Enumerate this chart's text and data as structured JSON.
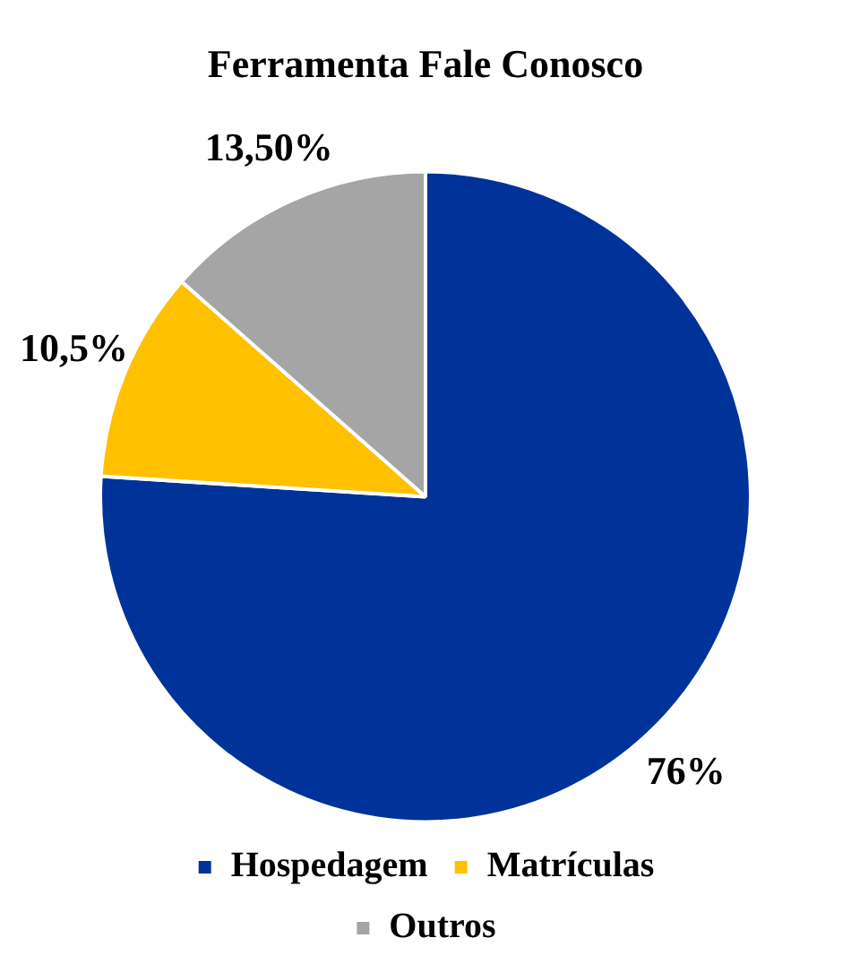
{
  "chart_data": {
    "type": "pie",
    "title": "Ferramenta Fale Conosco",
    "categories": [
      "Hospedagem",
      "Matrículas",
      "Outros"
    ],
    "values": [
      76,
      10.5,
      13.5
    ],
    "value_labels": [
      "76%",
      "10,5%",
      "13,50%"
    ],
    "colors": [
      "#003399",
      "#ffc000",
      "#a5a5a5"
    ],
    "legend": "bottom"
  }
}
